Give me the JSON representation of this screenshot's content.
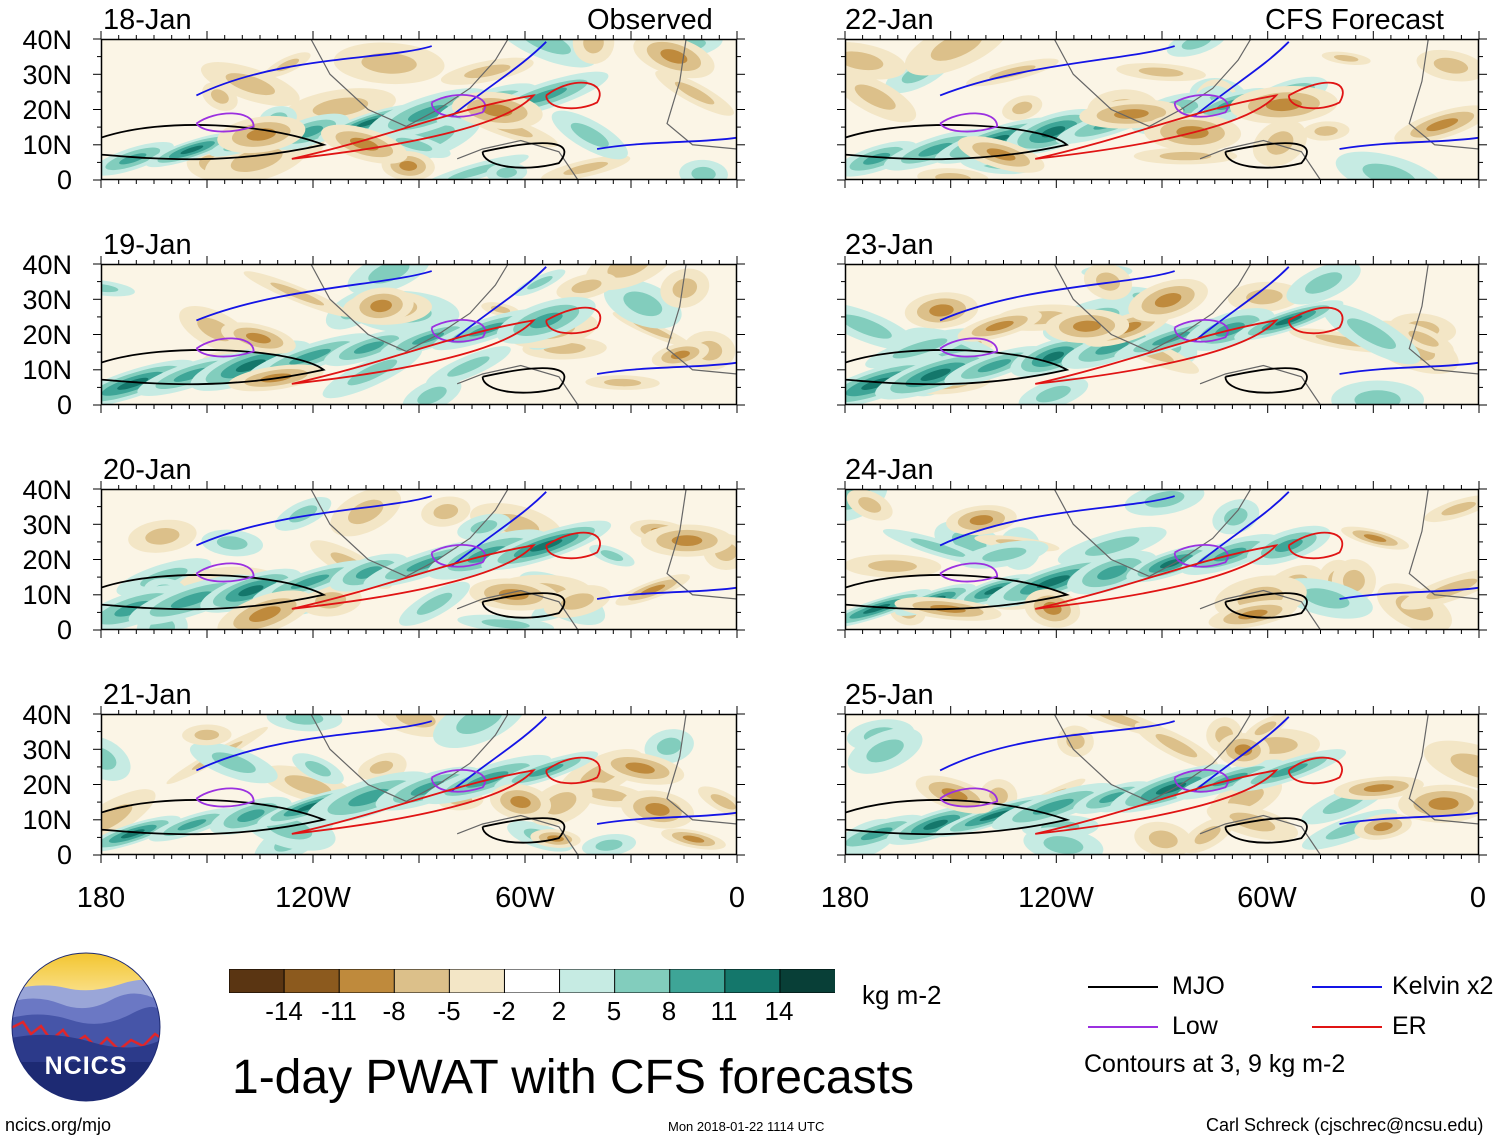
{
  "header": {
    "left_panel_label": "Observed",
    "right_panel_label": "CFS Forecast"
  },
  "panels": {
    "observed": [
      "18-Jan",
      "19-Jan",
      "20-Jan",
      "21-Jan"
    ],
    "forecast": [
      "22-Jan",
      "23-Jan",
      "24-Jan",
      "25-Jan"
    ]
  },
  "axes": {
    "y_ticks": [
      "40N",
      "30N",
      "20N",
      "10N",
      "0"
    ],
    "x_ticks": [
      "180",
      "120W",
      "60W",
      "0"
    ]
  },
  "colorbar": {
    "labels": [
      "-14",
      "-11",
      "-8",
      "-5",
      "-2",
      "2",
      "5",
      "8",
      "11",
      "14"
    ],
    "colors": [
      "#5a3512",
      "#8c5a1e",
      "#bf8a3c",
      "#dcc08a",
      "#f3e6c6",
      "#ffffff",
      "#c6ebe3",
      "#82cdbd",
      "#3ea597",
      "#14776b",
      "#083f37"
    ],
    "units": "kg m-2"
  },
  "legend": {
    "items": [
      {
        "label": "MJO",
        "color": "#000000"
      },
      {
        "label": "Kelvin x2",
        "color": "#1414e6"
      },
      {
        "label": "Low",
        "color": "#9b30e0"
      },
      {
        "label": "ER",
        "color": "#e01414"
      }
    ],
    "note": "Contours at 3, 9 kg m-2"
  },
  "logo": {
    "text": "NCICS"
  },
  "title": "1-day PWAT with CFS forecasts",
  "footer": {
    "site": "ncics.org/mjo",
    "timestamp": "Mon 2018-01-22 1114 UTC",
    "author": "Carl Schreck (cjschrec@ncsu.edu)"
  }
}
